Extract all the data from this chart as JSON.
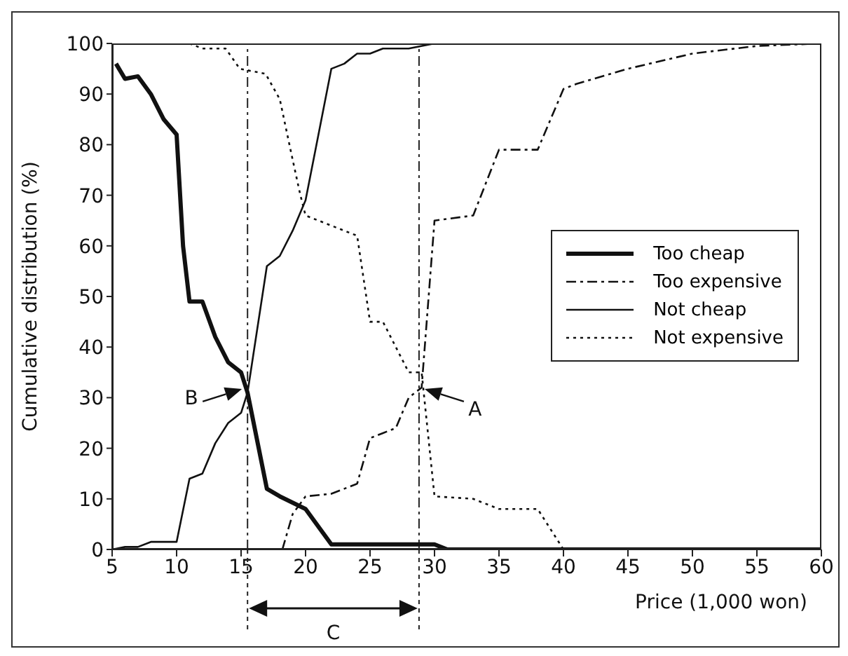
{
  "chart_data": {
    "type": "line",
    "xlabel": "Price (1,000 won)",
    "ylabel": "Cumulative distribution (%)",
    "xlim": [
      5,
      60
    ],
    "xticks": [
      5,
      10,
      15,
      20,
      25,
      30,
      35,
      40,
      45,
      50,
      55,
      60
    ],
    "ylim": [
      0,
      100
    ],
    "yticks": [
      0,
      10,
      20,
      30,
      40,
      50,
      60,
      70,
      80,
      90,
      100
    ],
    "grid": false,
    "legend": "right",
    "marker": "none",
    "series": [
      {
        "name": "Too cheap",
        "color": "#111111",
        "line_style": "solid",
        "x": [
          5.3,
          6,
          7,
          8,
          9,
          10,
          10.5,
          11,
          12,
          13,
          14,
          15,
          15.5,
          17,
          18,
          20,
          22,
          30,
          31,
          60
        ],
        "values": [
          96,
          93,
          93.5,
          90,
          85,
          82,
          60,
          49,
          49,
          42,
          37,
          35,
          31,
          12,
          10.5,
          8,
          1,
          1,
          0,
          0
        ]
      },
      {
        "name": "Too expensive",
        "color": "#111111",
        "line_style": "dashed",
        "x": [
          18.2,
          19,
          20,
          22,
          23,
          24,
          25,
          26,
          27,
          28,
          29,
          30,
          33,
          35,
          38,
          40,
          41,
          45,
          50,
          55,
          60
        ],
        "values": [
          0,
          7,
          10.5,
          11,
          12,
          13,
          22,
          23,
          24,
          30,
          32,
          65,
          66,
          79,
          79,
          91,
          92,
          95,
          98,
          99.5,
          100
        ]
      },
      {
        "name": "Not cheap",
        "color": "#111111",
        "line_style": "solid",
        "x": [
          5,
          6,
          7,
          8,
          10,
          11,
          12,
          13,
          14,
          15,
          15.5,
          17,
          18,
          19,
          20,
          21,
          22,
          23,
          24,
          25,
          26,
          28,
          30
        ],
        "values": [
          0,
          0.5,
          0.5,
          1.5,
          1.5,
          14,
          15,
          21,
          25,
          27,
          31,
          56,
          58,
          63,
          69,
          82,
          95,
          96,
          98,
          98,
          99,
          99,
          100
        ]
      },
      {
        "name": "Not expensive",
        "color": "#111111",
        "line_style": "dotted",
        "x": [
          11,
          12,
          13.8,
          14.9,
          16.9,
          18,
          19,
          19.6,
          20,
          22,
          24,
          25,
          26,
          27,
          28,
          29,
          30,
          33,
          35,
          38,
          40
        ],
        "values": [
          100,
          99,
          99,
          95,
          94,
          89,
          77,
          70,
          66,
          64,
          62,
          45,
          45,
          40,
          35,
          35,
          10.5,
          10,
          8,
          8,
          0
        ]
      }
    ],
    "ref_lines": [
      {
        "axis": "x",
        "value": 15.5,
        "line_style": "dashed"
      },
      {
        "axis": "x",
        "value": 28.8,
        "line_style": "dashed"
      }
    ],
    "annotations": [
      {
        "text": "A",
        "x": 28.8,
        "y": 32
      },
      {
        "text": "B",
        "x": 15.5,
        "y": 32
      },
      "C"
    ]
  }
}
